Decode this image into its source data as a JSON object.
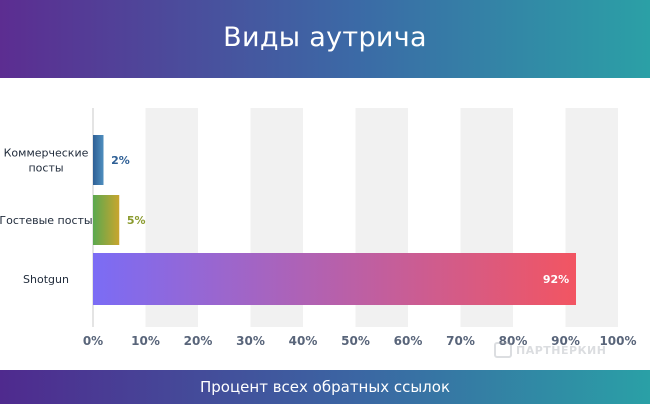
{
  "watermark": {
    "text": "ПАРТНЕРКИН",
    "icon": "chat-bubble-icon"
  },
  "colors": {
    "header_from": "#5c2d91",
    "header_to": "#2ba0a6"
  },
  "chart_data": {
    "type": "bar",
    "orientation": "horizontal",
    "title": "Виды аутрича",
    "xlabel": "Процент всех обратных ссылок",
    "ylabel": "",
    "categories": [
      "Коммерческие посты",
      "Гостевые посты",
      "Shotgun"
    ],
    "values": [
      2,
      5,
      92
    ],
    "data_labels": [
      "2%",
      "5%",
      "92%"
    ],
    "x_ticks": [
      "0%",
      "10%",
      "20%",
      "30%",
      "40%",
      "50%",
      "60%",
      "70%",
      "80%",
      "90%",
      "100%"
    ],
    "xlim": [
      0,
      100
    ],
    "grid": "vertical alternating bands",
    "legend": "none",
    "bar_colors": [
      {
        "from": "#2e5f95",
        "to": "#4f8fbf"
      },
      {
        "from": "#5aa84f",
        "to": "#c9a52e"
      },
      {
        "from": "#7b6cf5",
        "to": "#f25562"
      }
    ],
    "label_colors": [
      "#2e5f95",
      "#8a9a2e",
      "#ffffff"
    ]
  }
}
